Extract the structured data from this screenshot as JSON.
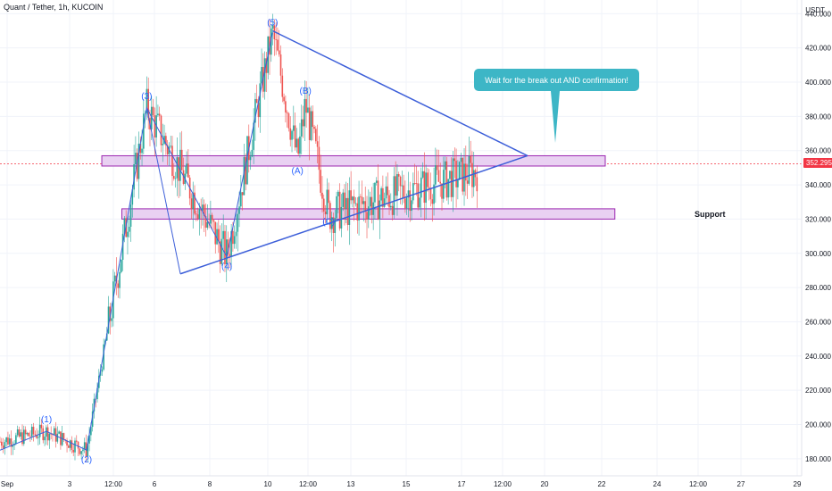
{
  "header": {
    "title": "Quant / Tether, 1h, KUCOIN",
    "currency": "USDT"
  },
  "price_tag": "352.295",
  "callout_text": "Wait for the break out AND confirmation!",
  "support_label": "Support",
  "wave_labels": [
    "(1)",
    "(2)",
    "(3)",
    "(4)",
    "(5)",
    "(A)",
    "(B)",
    "(C)"
  ],
  "colors": {
    "bull": "#26a69a",
    "bear": "#ef5350",
    "trendline": "#3d5fd9",
    "zone_fill": "#e9d1f2",
    "zone_border": "#9c27b0",
    "callout": "#3db6c6",
    "price_tag": "#f23645"
  },
  "chart_data": {
    "type": "candlestick",
    "x_ticks": [
      "Sep",
      "3",
      "12:00",
      "6",
      "8",
      "10",
      "12:00",
      "13",
      "15",
      "17",
      "12:00",
      "20",
      "22",
      "24",
      "12:00",
      "27",
      "29"
    ],
    "y_ticks": [
      180,
      200,
      220,
      240,
      260,
      280,
      300,
      320,
      340,
      360,
      380,
      400,
      420,
      440
    ],
    "ylim": [
      170,
      448
    ],
    "last_price": 352.295,
    "wave_points": [
      {
        "label": "(1)",
        "t": 0.058,
        "price": 196
      },
      {
        "label": "(2)",
        "t": 0.108,
        "price": 185
      },
      {
        "label": "(3)",
        "t": 0.183,
        "price": 385
      },
      {
        "label": "(4)",
        "t": 0.283,
        "price": 298
      },
      {
        "label": "(5)",
        "t": 0.34,
        "price": 429
      },
      {
        "label": "(A)",
        "t": 0.371,
        "price": 355
      },
      {
        "label": "(B)",
        "t": 0.381,
        "price": 387
      },
      {
        "label": "(C)",
        "t": 0.41,
        "price": 323
      },
      {
        "label": "",
        "t": 0.595,
        "price": 348
      }
    ],
    "zones": [
      {
        "name": "upper",
        "t1": 0.127,
        "t2": 0.755,
        "price_low": 351,
        "price_high": 357
      },
      {
        "name": "Support",
        "t1": 0.152,
        "t2": 0.767,
        "price_low": 320,
        "price_high": 326
      }
    ],
    "triangle": [
      {
        "t": 0.34,
        "price": 430
      },
      {
        "t": 0.658,
        "price": 357
      },
      {
        "t": 0.283,
        "price": 298
      }
    ],
    "triangle_lower_start": {
      "t": 0.225,
      "price": 288
    }
  }
}
